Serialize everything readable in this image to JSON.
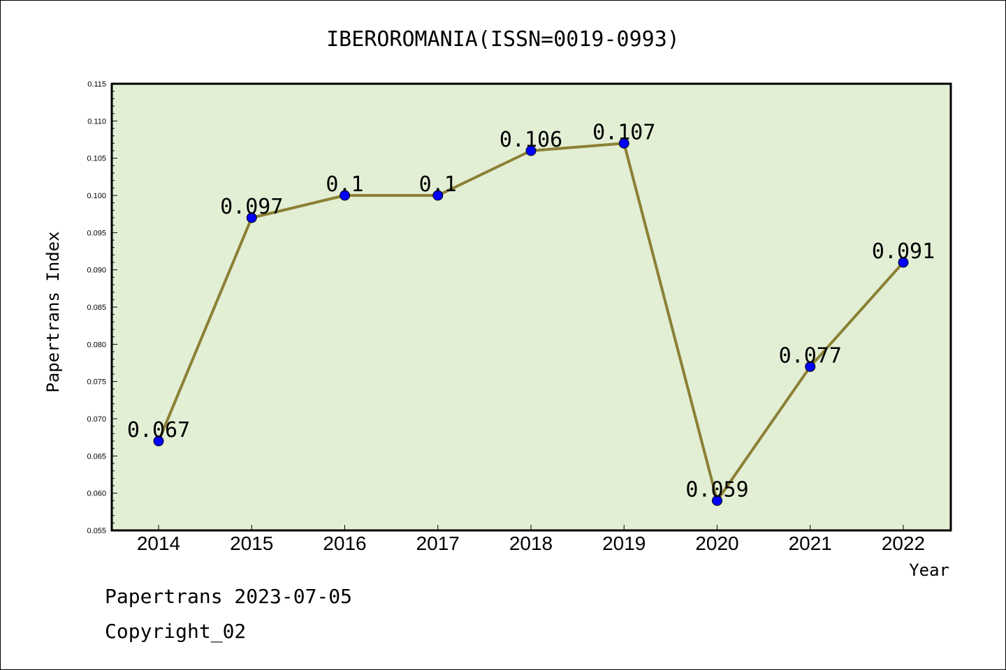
{
  "chart_data": {
    "type": "line",
    "title": "IBEROROMANIA(ISSN=0019-0993)",
    "xlabel": "Year",
    "ylabel": "Papertrans Index",
    "categories": [
      "2014",
      "2015",
      "2016",
      "2017",
      "2018",
      "2019",
      "2020",
      "2021",
      "2022"
    ],
    "series": [
      {
        "values": [
          0.067,
          0.097,
          0.1,
          0.1,
          0.106,
          0.107,
          0.059,
          0.077,
          0.091
        ],
        "labels": [
          "0.067",
          "0.097",
          "0.1",
          "0.1",
          "0.106",
          "0.107",
          "0.059",
          "0.077",
          "0.091"
        ]
      }
    ],
    "ylim": [
      0.055,
      0.115
    ],
    "yticks": [
      "0.055",
      "0.060",
      "0.065",
      "0.070",
      "0.075",
      "0.080",
      "0.085",
      "0.090",
      "0.095",
      "0.100",
      "0.105",
      "0.110",
      "0.115"
    ],
    "grid": false,
    "colors": {
      "line": "#8b8035",
      "marker": "#0000ff",
      "plot_background": "#e2efd5"
    }
  },
  "footer": {
    "line1": "Papertrans 2023-07-05",
    "line2": "Copyright_02"
  }
}
